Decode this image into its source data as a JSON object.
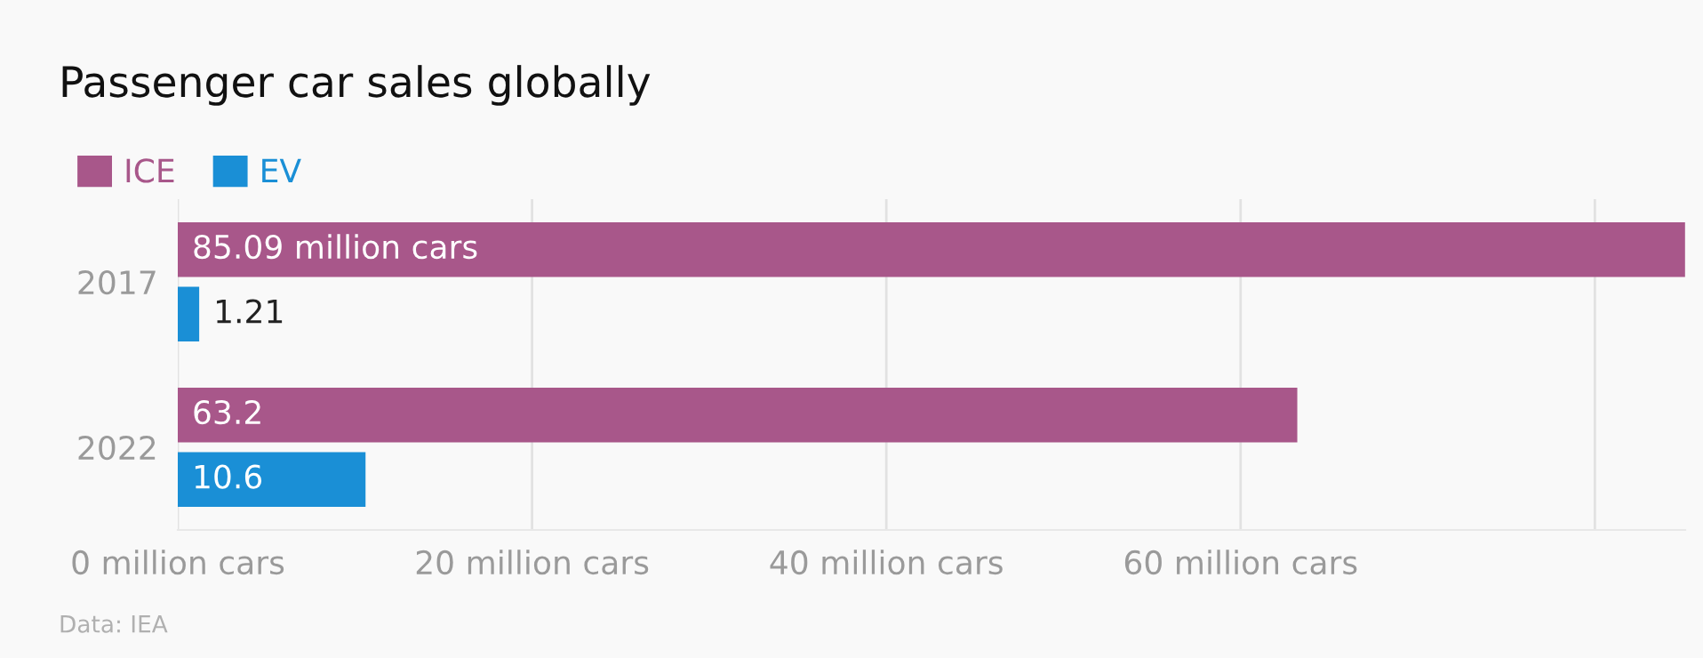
{
  "chart_data": {
    "type": "bar",
    "orientation": "horizontal",
    "title": "Passenger car sales globally",
    "categories": [
      "2017",
      "2022"
    ],
    "series": [
      {
        "name": "ICE",
        "color": "#a8578a",
        "values": [
          85.09,
          63.2
        ],
        "value_labels": [
          "85.09 million cars",
          "63.2"
        ]
      },
      {
        "name": "EV",
        "color": "#1a8fd6",
        "values": [
          1.21,
          10.6
        ],
        "value_labels": [
          "1.21",
          "10.6"
        ]
      }
    ],
    "xlim": [
      0,
      85.1
    ],
    "xticks": [
      {
        "value": 0,
        "label": "0 million cars"
      },
      {
        "value": 20,
        "label": "20 million cars"
      },
      {
        "value": 40,
        "label": "40 million cars"
      },
      {
        "value": 60,
        "label": "60 million cars"
      },
      {
        "value": 80,
        "label": null
      }
    ],
    "grid": "x",
    "legend": "top left",
    "annotations": [
      "Data: IEA"
    ]
  }
}
